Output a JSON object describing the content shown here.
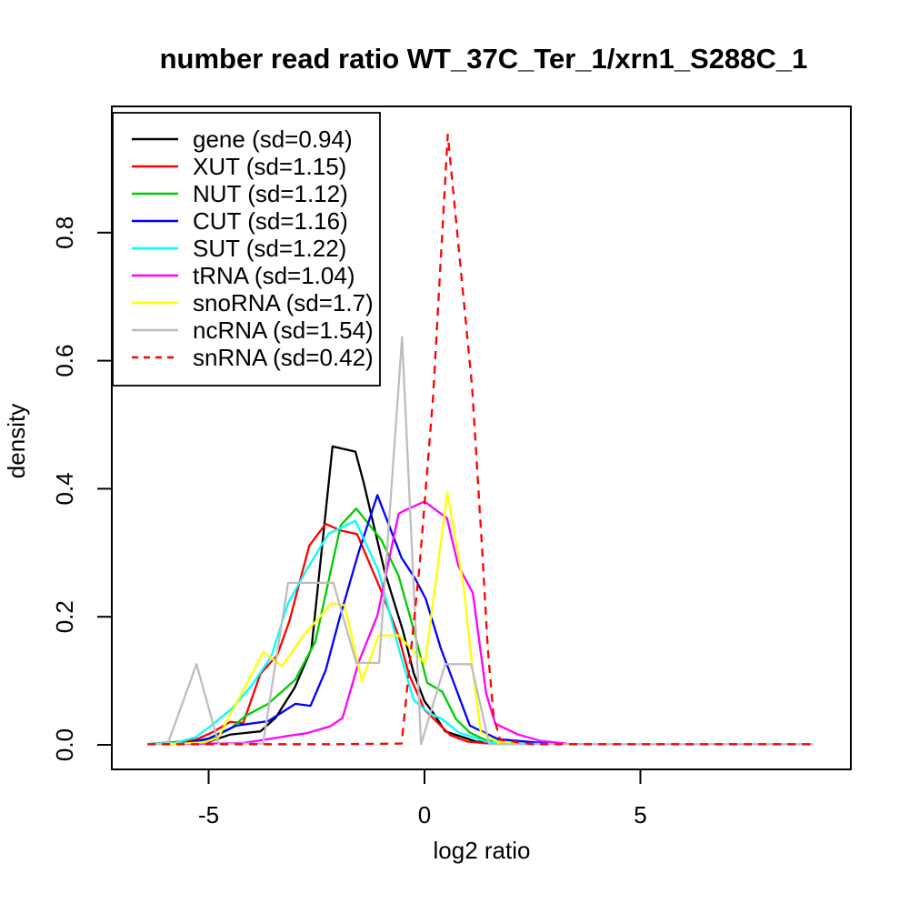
{
  "title": "number read ratio WT_37C_Ter_1/xrn1_S288C_1",
  "axes": {
    "xlabel": "log2 ratio",
    "ylabel": "density",
    "x_ticks": [
      "-5",
      "0",
      "5"
    ],
    "x_tick_values": [
      -5,
      0,
      5
    ],
    "y_ticks": [
      "0.0",
      "0.2",
      "0.4",
      "0.6",
      "0.8"
    ],
    "y_tick_values": [
      0,
      0.2,
      0.4,
      0.6,
      0.8
    ]
  },
  "legend": {
    "entries": [
      {
        "label": "gene (sd=0.94)",
        "name": "gene",
        "color": "#000000",
        "dashed": false
      },
      {
        "label": "XUT (sd=1.15)",
        "name": "XUT",
        "color": "#FF0000",
        "dashed": false
      },
      {
        "label": "NUT (sd=1.12)",
        "name": "NUT",
        "color": "#00CC00",
        "dashed": false
      },
      {
        "label": "CUT (sd=1.16)",
        "name": "CUT",
        "color": "#0000FF",
        "dashed": false
      },
      {
        "label": "SUT (sd=1.22)",
        "name": "SUT",
        "color": "#00FFFF",
        "dashed": false
      },
      {
        "label": "tRNA (sd=1.04)",
        "name": "tRNA",
        "color": "#FF00FF",
        "dashed": false
      },
      {
        "label": "snoRNA (sd=1.7)",
        "name": "snoRNA",
        "color": "#FFFF00",
        "dashed": false
      },
      {
        "label": "ncRNA (sd=1.54)",
        "name": "ncRNA",
        "color": "#BEBEBE",
        "dashed": false
      },
      {
        "label": "snRNA (sd=0.42)",
        "name": "snRNA",
        "color": "#FF0000",
        "dashed": true
      }
    ]
  },
  "chart_data": {
    "type": "line",
    "title": "number read ratio WT_37C_Ter_1/xrn1_S288C_1",
    "xlabel": "log2 ratio",
    "ylabel": "density",
    "xlim": [
      -7.2,
      9.9
    ],
    "ylim": [
      0,
      1.0
    ],
    "grid": false,
    "legend_position": "topleft",
    "series": [
      {
        "name": "gene",
        "sd": 0.94,
        "color": "#000000",
        "dashed": false,
        "points": [
          [
            -6.35,
            0.001
          ],
          [
            -5.6,
            0.002
          ],
          [
            -5.0,
            0.005
          ],
          [
            -4.5,
            0.016
          ],
          [
            -3.8,
            0.021
          ],
          [
            -3.45,
            0.042
          ],
          [
            -3.0,
            0.09
          ],
          [
            -2.62,
            0.15
          ],
          [
            -2.13,
            0.466
          ],
          [
            -1.6,
            0.458
          ],
          [
            -1.41,
            0.41
          ],
          [
            -0.92,
            0.27
          ],
          [
            -0.5,
            0.178
          ],
          [
            -0.25,
            0.112
          ],
          [
            0.0,
            0.068
          ],
          [
            0.2,
            0.05
          ],
          [
            0.48,
            0.021
          ],
          [
            0.8,
            0.014
          ],
          [
            1.2,
            0.005
          ],
          [
            1.8,
            0.002
          ],
          [
            2.5,
            0.001
          ]
        ]
      },
      {
        "name": "XUT",
        "sd": 1.15,
        "color": "#FF0000",
        "dashed": false,
        "points": [
          [
            -6.35,
            0.002
          ],
          [
            -5.8,
            0.004
          ],
          [
            -5.3,
            0.008
          ],
          [
            -4.9,
            0.02
          ],
          [
            -4.5,
            0.036
          ],
          [
            -4.2,
            0.034
          ],
          [
            -3.8,
            0.111
          ],
          [
            -3.41,
            0.14
          ],
          [
            -3.13,
            0.193
          ],
          [
            -2.67,
            0.311
          ],
          [
            -2.29,
            0.345
          ],
          [
            -1.95,
            0.335
          ],
          [
            -1.56,
            0.329
          ],
          [
            -1.0,
            0.24
          ],
          [
            -0.6,
            0.17
          ],
          [
            -0.36,
            0.11
          ],
          [
            0.0,
            0.055
          ],
          [
            0.3,
            0.035
          ],
          [
            0.6,
            0.015
          ],
          [
            1.0,
            0.005
          ],
          [
            1.5,
            0.002
          ],
          [
            2.1,
            0.001
          ]
        ]
      },
      {
        "name": "NUT",
        "sd": 1.12,
        "color": "#00CC00",
        "dashed": false,
        "points": [
          [
            -6.35,
            0.001
          ],
          [
            -5.5,
            0.003
          ],
          [
            -5.0,
            0.008
          ],
          [
            -4.5,
            0.025
          ],
          [
            -4.15,
            0.045
          ],
          [
            -3.62,
            0.064
          ],
          [
            -2.99,
            0.102
          ],
          [
            -2.53,
            0.161
          ],
          [
            -1.94,
            0.343
          ],
          [
            -1.58,
            0.369
          ],
          [
            -1.0,
            0.32
          ],
          [
            -0.6,
            0.264
          ],
          [
            -0.25,
            0.18
          ],
          [
            0.06,
            0.097
          ],
          [
            0.41,
            0.083
          ],
          [
            0.73,
            0.04
          ],
          [
            1.05,
            0.019
          ],
          [
            1.43,
            0.007
          ],
          [
            2.1,
            0.002
          ],
          [
            3.0,
            0.001
          ],
          [
            3.8,
            0.001
          ]
        ]
      },
      {
        "name": "CUT",
        "sd": 1.16,
        "color": "#0000FF",
        "dashed": false,
        "points": [
          [
            -6.35,
            0.001
          ],
          [
            -5.5,
            0.003
          ],
          [
            -5.0,
            0.01
          ],
          [
            -4.36,
            0.03
          ],
          [
            -3.62,
            0.037
          ],
          [
            -2.99,
            0.064
          ],
          [
            -2.64,
            0.061
          ],
          [
            -2.29,
            0.116
          ],
          [
            -1.97,
            0.197
          ],
          [
            -1.52,
            0.302
          ],
          [
            -1.09,
            0.39
          ],
          [
            -0.53,
            0.292
          ],
          [
            -0.22,
            0.26
          ],
          [
            0.03,
            0.228
          ],
          [
            0.38,
            0.15
          ],
          [
            0.66,
            0.1
          ],
          [
            1.05,
            0.03
          ],
          [
            1.7,
            0.009
          ],
          [
            2.2,
            0.006
          ],
          [
            2.9,
            0.002
          ]
        ]
      },
      {
        "name": "SUT",
        "sd": 1.22,
        "color": "#00FFFF",
        "dashed": false,
        "points": [
          [
            -6.35,
            0.002
          ],
          [
            -5.77,
            0.003
          ],
          [
            -5.3,
            0.012
          ],
          [
            -4.9,
            0.032
          ],
          [
            -4.46,
            0.057
          ],
          [
            -4.0,
            0.093
          ],
          [
            -3.55,
            0.138
          ],
          [
            -3.16,
            0.221
          ],
          [
            -2.71,
            0.276
          ],
          [
            -2.22,
            0.33
          ],
          [
            -1.6,
            0.35
          ],
          [
            -1.06,
            0.271
          ],
          [
            -0.57,
            0.144
          ],
          [
            -0.25,
            0.07
          ],
          [
            0.1,
            0.05
          ],
          [
            0.41,
            0.04
          ],
          [
            0.8,
            0.019
          ],
          [
            1.43,
            0.005
          ],
          [
            2.2,
            0.002
          ],
          [
            3.2,
            0.001
          ]
        ]
      },
      {
        "name": "tRNA",
        "sd": 1.04,
        "color": "#FF00FF",
        "dashed": false,
        "points": [
          [
            -6.35,
            0.001
          ],
          [
            -5.0,
            0.002
          ],
          [
            -4.2,
            0.003
          ],
          [
            -3.7,
            0.008
          ],
          [
            -3.16,
            0.014
          ],
          [
            -2.74,
            0.018
          ],
          [
            -2.18,
            0.029
          ],
          [
            -1.9,
            0.042
          ],
          [
            -1.52,
            0.13
          ],
          [
            -1.09,
            0.202
          ],
          [
            -0.6,
            0.361
          ],
          [
            -0.46,
            0.366
          ],
          [
            0.0,
            0.38
          ],
          [
            0.52,
            0.354
          ],
          [
            0.78,
            0.28
          ],
          [
            1.12,
            0.237
          ],
          [
            1.43,
            0.08
          ],
          [
            1.64,
            0.033
          ],
          [
            2.17,
            0.016
          ],
          [
            2.7,
            0.006
          ],
          [
            3.3,
            0.002
          ]
        ]
      },
      {
        "name": "snoRNA",
        "sd": 1.7,
        "color": "#FFFF00",
        "dashed": false,
        "points": [
          [
            -6.35,
            0.001
          ],
          [
            -5.6,
            0.002
          ],
          [
            -5.1,
            0.004
          ],
          [
            -4.78,
            0.011
          ],
          [
            -4.4,
            0.06
          ],
          [
            -3.73,
            0.145
          ],
          [
            -3.3,
            0.123
          ],
          [
            -2.78,
            0.173
          ],
          [
            -2.15,
            0.221
          ],
          [
            -1.85,
            0.218
          ],
          [
            -1.45,
            0.099
          ],
          [
            -1.06,
            0.171
          ],
          [
            -0.6,
            0.171
          ],
          [
            0.01,
            0.127
          ],
          [
            0.53,
            0.394
          ],
          [
            0.9,
            0.25
          ],
          [
            1.1,
            0.125
          ],
          [
            1.3,
            0.02
          ],
          [
            1.7,
            0.004
          ],
          [
            2.2,
            0.001
          ]
        ]
      },
      {
        "name": "ncRNA",
        "sd": 1.54,
        "color": "#BEBEBE",
        "dashed": false,
        "points": [
          [
            -6.35,
            0.001
          ],
          [
            -5.95,
            0.001
          ],
          [
            -5.28,
            0.126
          ],
          [
            -4.77,
            0.002
          ],
          [
            -4.3,
            0.002
          ],
          [
            -3.74,
            0.002
          ],
          [
            -3.16,
            0.253
          ],
          [
            -2.64,
            0.253
          ],
          [
            -2.11,
            0.253
          ],
          [
            -1.58,
            0.128
          ],
          [
            -1.05,
            0.128
          ],
          [
            -0.52,
            0.637
          ],
          [
            -0.08,
            0.001
          ],
          [
            0.48,
            0.126
          ],
          [
            1.08,
            0.126
          ],
          [
            1.5,
            0.001
          ],
          [
            2.5,
            0.001
          ],
          [
            5.0,
            0.001
          ],
          [
            9.0,
            0.001
          ]
        ]
      },
      {
        "name": "snRNA",
        "sd": 0.42,
        "color": "#FF0000",
        "dashed": true,
        "points": [
          [
            -6.42,
            0.001
          ],
          [
            -4.0,
            0.001
          ],
          [
            -2.0,
            0.001
          ],
          [
            -0.53,
            0.002
          ],
          [
            -0.11,
            0.283
          ],
          [
            0.2,
            0.545
          ],
          [
            0.54,
            0.953
          ],
          [
            1.1,
            0.56
          ],
          [
            1.33,
            0.31
          ],
          [
            1.47,
            0.147
          ],
          [
            1.6,
            0.045
          ],
          [
            1.75,
            0.008
          ],
          [
            2.5,
            0.001
          ],
          [
            5.0,
            0.001
          ],
          [
            9.0,
            0.001
          ]
        ]
      }
    ]
  }
}
